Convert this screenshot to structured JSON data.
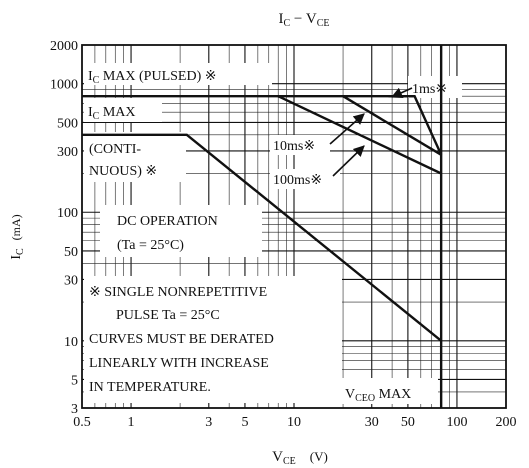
{
  "chart_data": {
    "type": "line",
    "title": "I_C − V_CE",
    "title_parts": {
      "main1": "I",
      "sub1": "C",
      "dash": " − V",
      "sub2": "CE"
    },
    "xlabel_parts": {
      "main": "V",
      "sub": "CE",
      "unit": "(V)"
    },
    "ylabel_parts": {
      "main": "I",
      "sub": "C",
      "unit": "(mA)"
    },
    "xscale": "log",
    "yscale": "log",
    "xlim": [
      0.5,
      200
    ],
    "ylim": [
      3,
      2000
    ],
    "grid": true,
    "x_ticks": [
      {
        "value": 0.5,
        "label": "0.5"
      },
      {
        "value": 1,
        "label": "1"
      },
      {
        "value": 3,
        "label": "3"
      },
      {
        "value": 5,
        "label": "5"
      },
      {
        "value": 10,
        "label": "10"
      },
      {
        "value": 30,
        "label": "30"
      },
      {
        "value": 50,
        "label": "50"
      },
      {
        "value": 100,
        "label": "100"
      },
      {
        "value": 200,
        "label": "200"
      }
    ],
    "y_ticks": [
      {
        "value": 3,
        "label": "3"
      },
      {
        "value": 5,
        "label": "5"
      },
      {
        "value": 10,
        "label": "10"
      },
      {
        "value": 30,
        "label": "30"
      },
      {
        "value": 50,
        "label": "50"
      },
      {
        "value": 100,
        "label": "100"
      },
      {
        "value": 300,
        "label": "300"
      },
      {
        "value": 500,
        "label": "500"
      },
      {
        "value": 1000,
        "label": "1000"
      },
      {
        "value": 2000,
        "label": "2000"
      }
    ],
    "series": [
      {
        "name": "DC",
        "points": [
          [
            0.5,
            400
          ],
          [
            2.2,
            400
          ],
          [
            80,
            10
          ]
        ]
      },
      {
        "name": "100ms",
        "points": [
          [
            8,
            800
          ],
          [
            80,
            200
          ]
        ]
      },
      {
        "name": "10ms",
        "points": [
          [
            20,
            800
          ],
          [
            80,
            280
          ]
        ]
      },
      {
        "name": "1ms",
        "points": [
          [
            38,
            800
          ],
          [
            55,
            800
          ],
          [
            80,
            280
          ]
        ]
      }
    ],
    "limits": {
      "ic_max_pulsed": 800,
      "ic_max": 400,
      "vceo_max": 80
    },
    "annotations": {
      "ic_max_pulsed_parts": {
        "main": "I",
        "sub": "C",
        "rest": " MAX (PULSED) ※"
      },
      "ic_max_parts": {
        "main": "I",
        "sub": "C",
        "rest": " MAX"
      },
      "continuous_line1": "(CONTI-",
      "continuous_line2": "NUOUS) ※",
      "dc_line1": "DC OPERATION",
      "dc_line2": "(Ta = 25°C)",
      "label_1ms": "1ms※",
      "label_10ms": "10ms※",
      "label_100ms": "100ms※",
      "note_line1": "※ SINGLE NONREPETITIVE",
      "note_line2": "PULSE Ta = 25°C",
      "note_line3": "CURVES MUST BE DERATED",
      "note_line4": "LINEARLY WITH INCREASE",
      "note_line5": "IN TEMPERATURE.",
      "vceo_parts": {
        "main": "V",
        "sub": "CEO",
        "rest": " MAX"
      }
    }
  }
}
